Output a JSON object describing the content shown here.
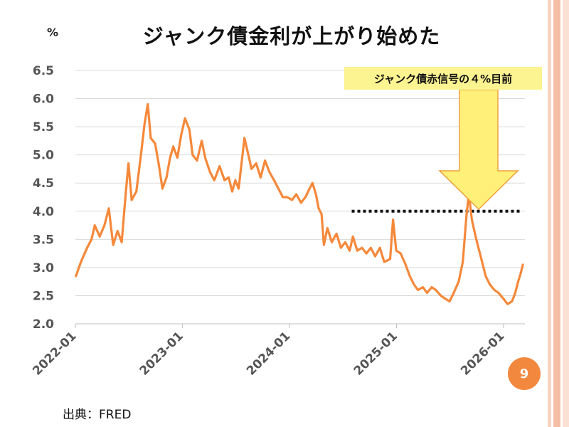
{
  "slide": {
    "title": "ジャンク債金利が上がり始めた",
    "unit_label": "%",
    "source": "出典：FRED",
    "page_number": "9"
  },
  "callout": {
    "text": "ジャンク債赤信号の４%目前",
    "box_color": "#fcf391",
    "arrow_fill": "#fff07a",
    "arrow_stroke": "#f0a03c"
  },
  "colors": {
    "line": "#f5883a",
    "grid": "#d9d9d9",
    "threshold": "#111111",
    "badge": "#f2883e",
    "frame": "#f7c7b2"
  },
  "chart_data": {
    "type": "line",
    "title": "ジャンク債金利が上がり始めた",
    "xlabel": "",
    "ylabel": "%",
    "ylim": [
      2.0,
      6.5
    ],
    "yticks": [
      "2.0",
      "2.5",
      "3.0",
      "3.5",
      "4.0",
      "4.5",
      "5.0",
      "5.5",
      "6.0",
      "6.5"
    ],
    "xticks": [
      "2022-01",
      "2023-01",
      "2024-01",
      "2025-01",
      "2026-01"
    ],
    "x_range": [
      "2022-01",
      "2026-03"
    ],
    "grid": true,
    "threshold": {
      "value": 4.0,
      "from": "2024-08",
      "to": "2026-03"
    },
    "series": [
      {
        "points": [
          [
            "2022-01-03",
            2.85
          ],
          [
            "2022-01-20",
            3.1
          ],
          [
            "2022-02-10",
            3.35
          ],
          [
            "2022-02-25",
            3.5
          ],
          [
            "2022-03-08",
            3.75
          ],
          [
            "2022-03-25",
            3.55
          ],
          [
            "2022-04-10",
            3.75
          ],
          [
            "2022-04-25",
            4.05
          ],
          [
            "2022-05-10",
            3.4
          ],
          [
            "2022-05-25",
            3.65
          ],
          [
            "2022-06-08",
            3.45
          ],
          [
            "2022-06-20",
            4.2
          ],
          [
            "2022-07-01",
            4.85
          ],
          [
            "2022-07-12",
            4.2
          ],
          [
            "2022-07-28",
            4.35
          ],
          [
            "2022-08-15",
            5.1
          ],
          [
            "2022-08-25",
            5.55
          ],
          [
            "2022-09-05",
            5.9
          ],
          [
            "2022-09-15",
            5.3
          ],
          [
            "2022-09-30",
            5.2
          ],
          [
            "2022-10-12",
            4.85
          ],
          [
            "2022-10-25",
            4.4
          ],
          [
            "2022-11-08",
            4.6
          ],
          [
            "2022-11-20",
            4.95
          ],
          [
            "2022-12-01",
            5.15
          ],
          [
            "2022-12-15",
            4.95
          ],
          [
            "2022-12-28",
            5.35
          ],
          [
            "2023-01-10",
            5.65
          ],
          [
            "2023-01-25",
            5.45
          ],
          [
            "2023-02-05",
            5.0
          ],
          [
            "2023-02-20",
            4.9
          ],
          [
            "2023-03-08",
            5.25
          ],
          [
            "2023-03-20",
            4.95
          ],
          [
            "2023-04-05",
            4.7
          ],
          [
            "2023-04-20",
            4.55
          ],
          [
            "2023-05-08",
            4.8
          ],
          [
            "2023-05-25",
            4.55
          ],
          [
            "2023-06-08",
            4.6
          ],
          [
            "2023-06-20",
            4.35
          ],
          [
            "2023-07-01",
            4.55
          ],
          [
            "2023-07-12",
            4.4
          ],
          [
            "2023-07-22",
            4.85
          ],
          [
            "2023-08-01",
            5.3
          ],
          [
            "2023-08-12",
            5.05
          ],
          [
            "2023-08-25",
            4.75
          ],
          [
            "2023-09-10",
            4.85
          ],
          [
            "2023-09-25",
            4.6
          ],
          [
            "2023-10-10",
            4.9
          ],
          [
            "2023-10-25",
            4.7
          ],
          [
            "2023-11-10",
            4.55
          ],
          [
            "2023-11-25",
            4.4
          ],
          [
            "2023-12-10",
            4.25
          ],
          [
            "2023-12-25",
            4.25
          ],
          [
            "2024-01-10",
            4.2
          ],
          [
            "2024-01-25",
            4.3
          ],
          [
            "2024-02-10",
            4.15
          ],
          [
            "2024-02-25",
            4.25
          ],
          [
            "2024-03-10",
            4.4
          ],
          [
            "2024-03-20",
            4.5
          ],
          [
            "2024-04-01",
            4.3
          ],
          [
            "2024-04-10",
            4.05
          ],
          [
            "2024-04-20",
            3.95
          ],
          [
            "2024-04-28",
            3.4
          ],
          [
            "2024-05-10",
            3.7
          ],
          [
            "2024-05-25",
            3.45
          ],
          [
            "2024-06-10",
            3.6
          ],
          [
            "2024-06-25",
            3.35
          ],
          [
            "2024-07-10",
            3.45
          ],
          [
            "2024-07-25",
            3.3
          ],
          [
            "2024-08-05",
            3.55
          ],
          [
            "2024-08-20",
            3.3
          ],
          [
            "2024-09-05",
            3.35
          ],
          [
            "2024-09-20",
            3.25
          ],
          [
            "2024-10-05",
            3.35
          ],
          [
            "2024-10-20",
            3.2
          ],
          [
            "2024-11-05",
            3.35
          ],
          [
            "2024-11-20",
            3.1
          ],
          [
            "2024-12-10",
            3.15
          ],
          [
            "2024-12-20",
            3.85
          ],
          [
            "2024-12-31",
            3.3
          ],
          [
            "2025-01-15",
            3.25
          ],
          [
            "2025-02-01",
            3.05
          ],
          [
            "2025-02-15",
            2.85
          ],
          [
            "2025-03-01",
            2.7
          ],
          [
            "2025-03-15",
            2.6
          ],
          [
            "2025-04-01",
            2.65
          ],
          [
            "2025-04-15",
            2.55
          ],
          [
            "2025-05-01",
            2.65
          ],
          [
            "2025-05-15",
            2.6
          ],
          [
            "2025-06-01",
            2.5
          ],
          [
            "2025-06-15",
            2.45
          ],
          [
            "2025-07-01",
            2.4
          ],
          [
            "2025-07-15",
            2.55
          ],
          [
            "2025-08-01",
            2.75
          ],
          [
            "2025-08-15",
            3.1
          ],
          [
            "2025-08-28",
            3.95
          ],
          [
            "2025-09-05",
            4.3
          ],
          [
            "2025-09-15",
            3.85
          ],
          [
            "2025-09-30",
            3.5
          ],
          [
            "2025-10-15",
            3.2
          ],
          [
            "2025-11-01",
            2.85
          ],
          [
            "2025-11-15",
            2.7
          ],
          [
            "2025-12-01",
            2.6
          ],
          [
            "2025-12-15",
            2.55
          ],
          [
            "2025-12-31",
            2.45
          ],
          [
            "2026-01-15",
            2.35
          ],
          [
            "2026-01-30",
            2.4
          ],
          [
            "2026-02-10",
            2.55
          ],
          [
            "2026-02-20",
            2.75
          ],
          [
            "2026-03-01",
            2.9
          ],
          [
            "2026-03-08",
            3.05
          ]
        ]
      }
    ]
  }
}
